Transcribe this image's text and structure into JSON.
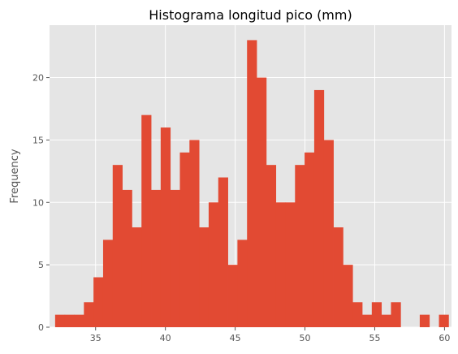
{
  "chart_data": {
    "type": "bar",
    "title": "Histograma longitud pico (mm)",
    "xlabel": "",
    "ylabel": "Frequency",
    "xlim": [
      31.7,
      60.5
    ],
    "ylim": [
      0,
      24.2
    ],
    "xticks": [
      35,
      40,
      45,
      50,
      55,
      60
    ],
    "yticks": [
      0,
      5,
      10,
      15,
      20
    ],
    "bin_start": 32.1,
    "bin_width": 0.6875,
    "counts": [
      1,
      1,
      1,
      2,
      4,
      7,
      13,
      11,
      8,
      17,
      11,
      16,
      11,
      14,
      15,
      8,
      10,
      12,
      5,
      7,
      23,
      20,
      13,
      10,
      10,
      13,
      14,
      19,
      15,
      8,
      5,
      2,
      1,
      2,
      1,
      2,
      0,
      0,
      1,
      0,
      1
    ],
    "grid": true,
    "colors": {
      "bar": "#E24A33",
      "plot_background": "#E5E5E5",
      "grid": "#FFFFFF"
    }
  }
}
